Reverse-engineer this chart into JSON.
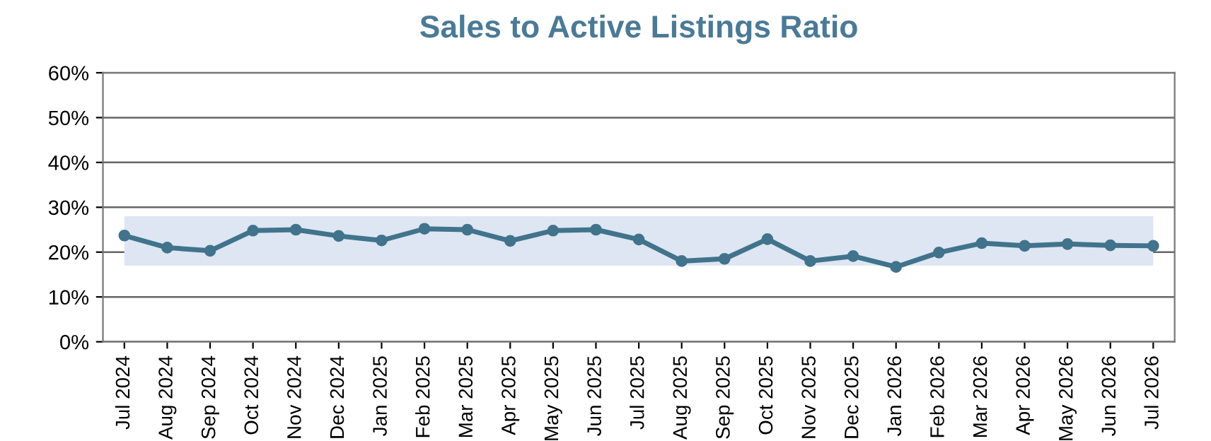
{
  "chart_data": {
    "type": "line",
    "title": "Sales to Active Listings Ratio",
    "categories": [
      "Jul 2024",
      "Aug 2024",
      "Sep 2024",
      "Oct 2024",
      "Nov 2024",
      "Dec 2024",
      "Jan 2025",
      "Feb 2025",
      "Mar 2025",
      "Apr 2025",
      "May 2025",
      "Jun 2025",
      "Jul 2025",
      "Aug 2025",
      "Sep 2025",
      "Oct 2025",
      "Nov 2025",
      "Dec 2025",
      "Jan 2026",
      "Feb 2026",
      "Mar 2026",
      "Apr 2026",
      "May 2026",
      "Jun 2026",
      "Jul 2026"
    ],
    "series": [
      {
        "color": "#41738c",
        "values": [
          23.7,
          21,
          20.3,
          24.8,
          25,
          23.6,
          22.6,
          25.2,
          25,
          22.5,
          24.8,
          25,
          22.8,
          18,
          18.5,
          22.9,
          18,
          19.1,
          16.7,
          19.9,
          22,
          21.4,
          21.8,
          21.5,
          21.4
        ]
      }
    ],
    "ylim": [
      0,
      60
    ],
    "yticks": [
      {
        "value": 0,
        "label": "0%"
      },
      {
        "value": 10,
        "label": "10%"
      },
      {
        "value": 20,
        "label": "20%"
      },
      {
        "value": 30,
        "label": "30%"
      },
      {
        "value": 40,
        "label": "40%"
      },
      {
        "value": 50,
        "label": "50%"
      },
      {
        "value": 60,
        "label": "60%"
      }
    ],
    "bands": [
      {
        "axis": "y",
        "from": 17,
        "to": 28,
        "color": "#dde6f2"
      }
    ],
    "grid": "y",
    "marker": "circle",
    "line_style": "solid",
    "legend": false
  }
}
